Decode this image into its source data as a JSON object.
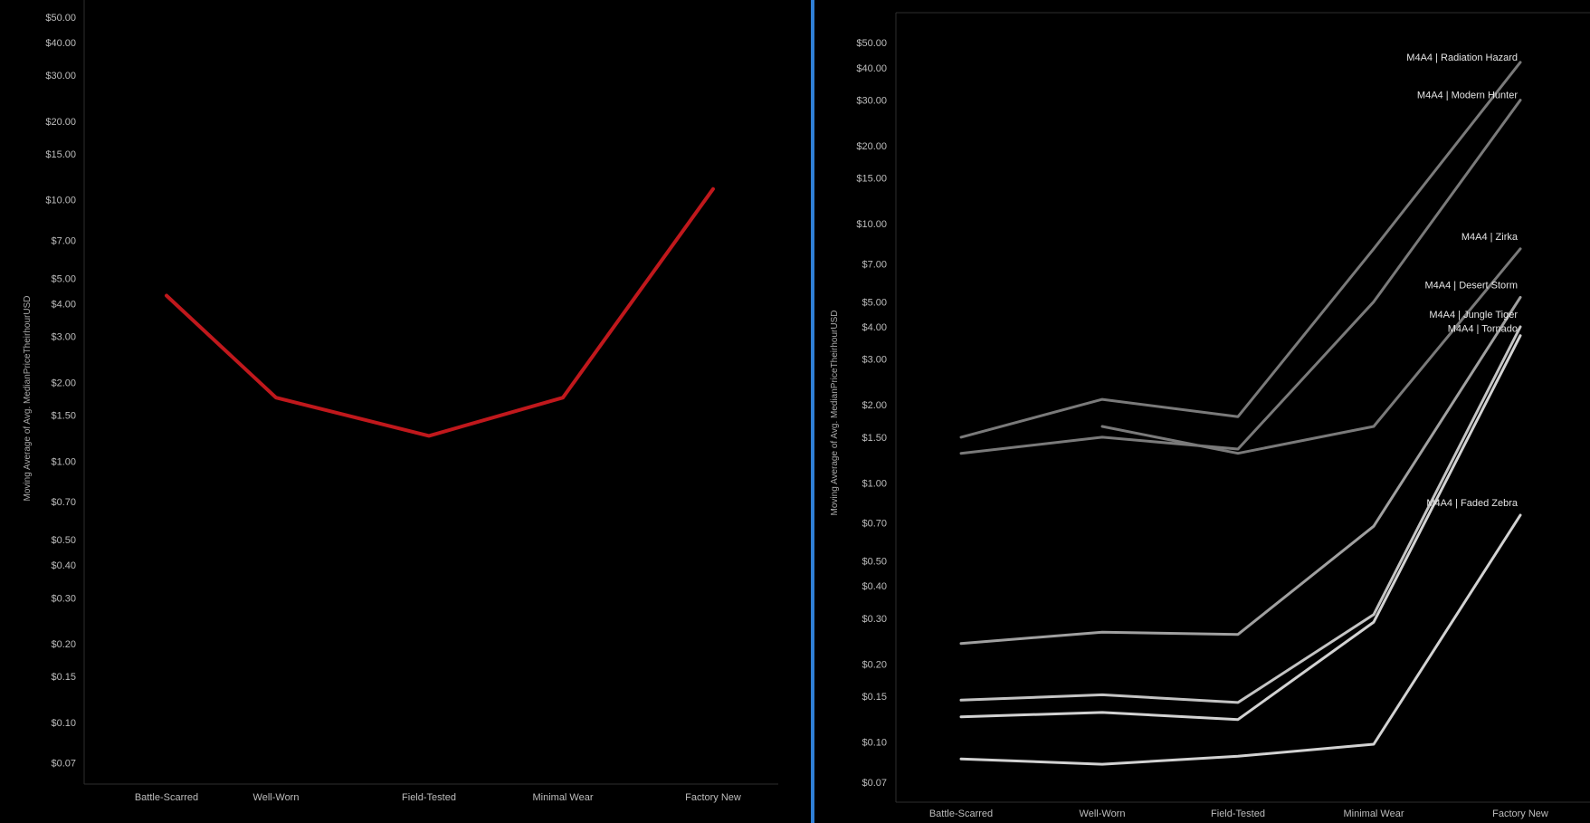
{
  "colors": {
    "background": "#000000",
    "divider": "#2f7fd6",
    "left_line": "#c0181c",
    "right_line_light": "#d2d2d2",
    "right_line_mid": "#a0a0a0",
    "right_line_dark": "#7a7a7a"
  },
  "chart_data": [
    {
      "type": "line",
      "ylabel": "Moving Average of Avg. MedianPriceTheirhourUSD",
      "xlabel": "",
      "yscale": "log",
      "ylim": [
        0.065,
        52
      ],
      "categories": [
        "Battle-Scarred",
        "Well-Worn",
        "Field-Tested",
        "Minimal Wear",
        "Factory New"
      ],
      "yticks": [
        50,
        40,
        30,
        20,
        15,
        10,
        7,
        5,
        4,
        3,
        2,
        1.5,
        1,
        0.7,
        0.5,
        0.4,
        0.3,
        0.2,
        0.15,
        0.1,
        0.07
      ],
      "ytick_labels": [
        "$50.00",
        "$40.00",
        "$30.00",
        "$20.00",
        "$15.00",
        "$10.00",
        "$7.00",
        "$5.00",
        "$4.00",
        "$3.00",
        "$2.00",
        "$1.50",
        "$1.00",
        "$0.70",
        "$0.50",
        "$0.40",
        "$0.30",
        "$0.20",
        "$0.15",
        "$0.10",
        "$0.07"
      ],
      "grid": false,
      "series": [
        {
          "x": [
            0,
            1,
            2,
            3,
            4
          ],
          "values": [
            4.3,
            1.75,
            1.25,
            1.75,
            11.0
          ]
        }
      ]
    },
    {
      "type": "line",
      "ylabel": "Moving Average of Avg. MedianPriceTheirhourUSD",
      "xlabel": "",
      "yscale": "log",
      "ylim": [
        0.065,
        56
      ],
      "categories": [
        "Battle-Scarred",
        "Well-Worn",
        "Field-Tested",
        "Minimal Wear",
        "Factory New"
      ],
      "yticks": [
        50,
        40,
        30,
        20,
        15,
        10,
        7,
        5,
        4,
        3,
        2,
        1.5,
        1,
        0.7,
        0.5,
        0.4,
        0.3,
        0.2,
        0.15,
        0.1,
        0.07
      ],
      "ytick_labels": [
        "$50.00",
        "$40.00",
        "$30.00",
        "$20.00",
        "$15.00",
        "$10.00",
        "$7.00",
        "$5.00",
        "$4.00",
        "$3.00",
        "$2.00",
        "$1.50",
        "$1.00",
        "$0.70",
        "$0.50",
        "$0.40",
        "$0.30",
        "$0.20",
        "$0.15",
        "$0.10",
        "$0.07"
      ],
      "grid": false,
      "series": [
        {
          "name": "M4A4 | Radiation Hazard",
          "x": [
            0,
            1,
            2,
            3,
            4
          ],
          "values": [
            1.5,
            2.1,
            1.8,
            8.0,
            42.0
          ],
          "color": "#7a7a7a"
        },
        {
          "name": "M4A4 | Modern Hunter",
          "x": [
            0,
            1,
            2,
            3,
            4
          ],
          "values": [
            1.3,
            1.5,
            1.35,
            5.0,
            30.0
          ],
          "color": "#7a7a7a"
        },
        {
          "name": "M4A4 | Zirka",
          "x": [
            1,
            2,
            3,
            4
          ],
          "values": [
            1.65,
            1.3,
            1.65,
            8.0
          ],
          "color": "#7a7a7a"
        },
        {
          "name": "M4A4 | Desert Storm",
          "x": [
            0,
            1,
            2,
            3,
            4
          ],
          "values": [
            0.24,
            0.265,
            0.26,
            0.68,
            5.2
          ],
          "color": "#a0a0a0"
        },
        {
          "name": "M4A4 | Jungle Tiger",
          "x": [
            0,
            1,
            2,
            3,
            4
          ],
          "values": [
            0.145,
            0.152,
            0.142,
            0.31,
            4.0
          ],
          "color": "#c4c4c4"
        },
        {
          "name": "M4A4 | Tornado",
          "x": [
            0,
            1,
            2,
            3,
            4
          ],
          "values": [
            0.125,
            0.13,
            0.122,
            0.29,
            3.7
          ],
          "color": "#d2d2d2"
        },
        {
          "name": "M4A4 | Faded Zebra",
          "x": [
            0,
            1,
            2,
            3,
            4
          ],
          "values": [
            0.086,
            0.082,
            0.088,
            0.098,
            0.75
          ],
          "color": "#d2d2d2"
        }
      ]
    }
  ]
}
